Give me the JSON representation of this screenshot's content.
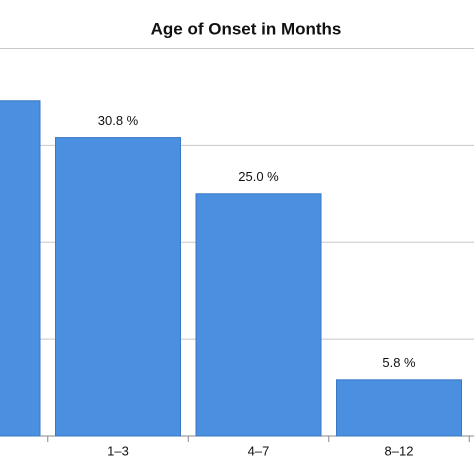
{
  "chart_data": {
    "type": "bar",
    "title": "Age of Onset in Months",
    "categories": [
      null,
      "1–3",
      "4–7",
      "8–12"
    ],
    "values": [
      34.6,
      30.8,
      25.0,
      5.8
    ],
    "value_labels": [
      null,
      "30.8 %",
      "25.0 %",
      "5.8 %"
    ],
    "color": "#4a8fe0",
    "ylim": [
      0,
      45
    ],
    "yticks": [
      0,
      10,
      20,
      30,
      40
    ],
    "y_tick_labels": false,
    "grid": true
  }
}
